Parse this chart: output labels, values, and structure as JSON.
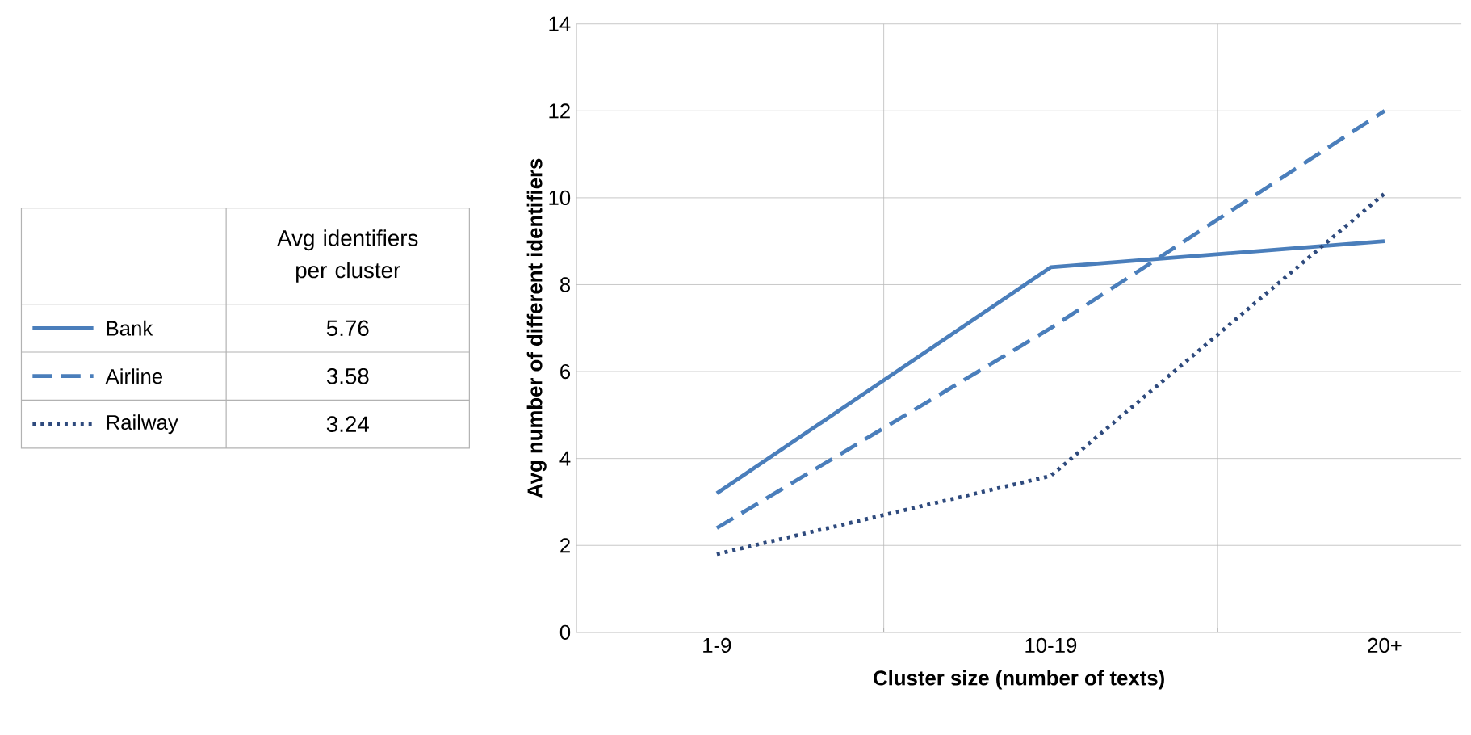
{
  "chart_data": {
    "type": "line",
    "categories": [
      "1-9",
      "10-19",
      "20+"
    ],
    "series": [
      {
        "name": "Bank",
        "color": "#4a7ebb",
        "line_style": "solid",
        "values": [
          3.2,
          8.4,
          9.0
        ]
      },
      {
        "name": "Airline",
        "color": "#4a7ebb",
        "line_style": "dashed",
        "values": [
          2.4,
          7.0,
          12.0
        ]
      },
      {
        "name": "Railway",
        "color": "#2e4a7d",
        "line_style": "dotted",
        "values": [
          1.8,
          3.6,
          10.1
        ]
      }
    ],
    "xlabel": "Cluster size (number of texts)",
    "ylabel": "Avg number of different identifiers",
    "ylim": [
      0,
      14
    ],
    "yticks": [
      0,
      2,
      4,
      6,
      8,
      10,
      12,
      14
    ],
    "grid": true,
    "legend": "left",
    "marker": "none",
    "annotations": [
      "Avg identifiers per cluster",
      "5.76",
      "3.58",
      "3.24"
    ]
  }
}
